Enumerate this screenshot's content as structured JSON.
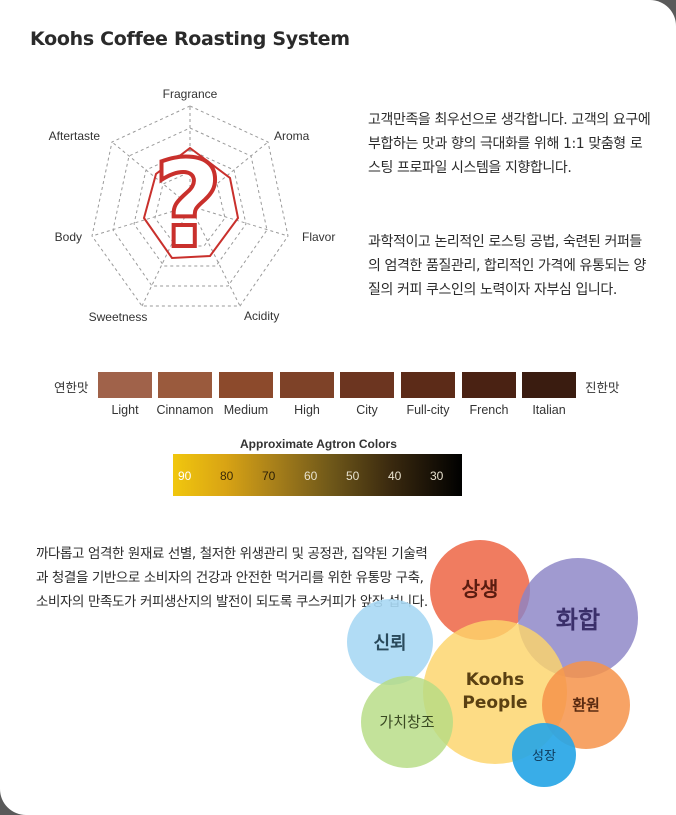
{
  "title": "Koohs Coffee Roasting System",
  "radar": {
    "axes": [
      "Fragrance",
      "Aroma",
      "Flavor",
      "Acidity",
      "Sweetness",
      "Body",
      "Aftertaste"
    ],
    "center_symbol": "?"
  },
  "para1": "고객만족을 최우선으로 생각합니다. 고객의 요구에 부합하는 맛과 향의 극대화를 위해 1:1 맞춤형 로스팅 프로파일 시스템을 지향합니다.",
  "para2": "과학적이고 논리적인 로스팅 공법, 숙련된 커퍼들의 엄격한 품질관리, 합리적인 가격에 유통되는 양질의 커피 쿠스인의 노력이자 자부심 입니다.",
  "roast": {
    "light_label": "연한맛",
    "dark_label": "진한맛",
    "levels": [
      {
        "name": "Light",
        "color": "#a0624a"
      },
      {
        "name": "Cinnamon",
        "color": "#9a5a3d"
      },
      {
        "name": "Medium",
        "color": "#8c4a2c"
      },
      {
        "name": "High",
        "color": "#7e4228"
      },
      {
        "name": "City",
        "color": "#6c3520"
      },
      {
        "name": "Full-city",
        "color": "#5c2b18"
      },
      {
        "name": "French",
        "color": "#4a2213"
      },
      {
        "name": "Italian",
        "color": "#3a1c10"
      }
    ]
  },
  "agtron": {
    "title": "Approximate Agtron Colors",
    "values": [
      "90",
      "80",
      "70",
      "60",
      "50",
      "40",
      "30"
    ]
  },
  "para3": "까다롭고 엄격한 원재료 선별, 철저한 위생관리 및 공정관, 집약된 기술력과 청결을 기반으로 소비자의 건강과 안전한 먹거리를 위한 유통망 구축, 소비자의 만족도가 커피생산지의 발전이 되도록 쿠스커피가 앞장 섭니다.",
  "values_diagram": {
    "center_line1": "Koohs",
    "center_line2": "People",
    "sangsaeng": "상생",
    "hwahap": "화합",
    "sinroe": "신뢰",
    "gachi": "가치창조",
    "hwanwon": "환원",
    "seongjang": "성장"
  }
}
